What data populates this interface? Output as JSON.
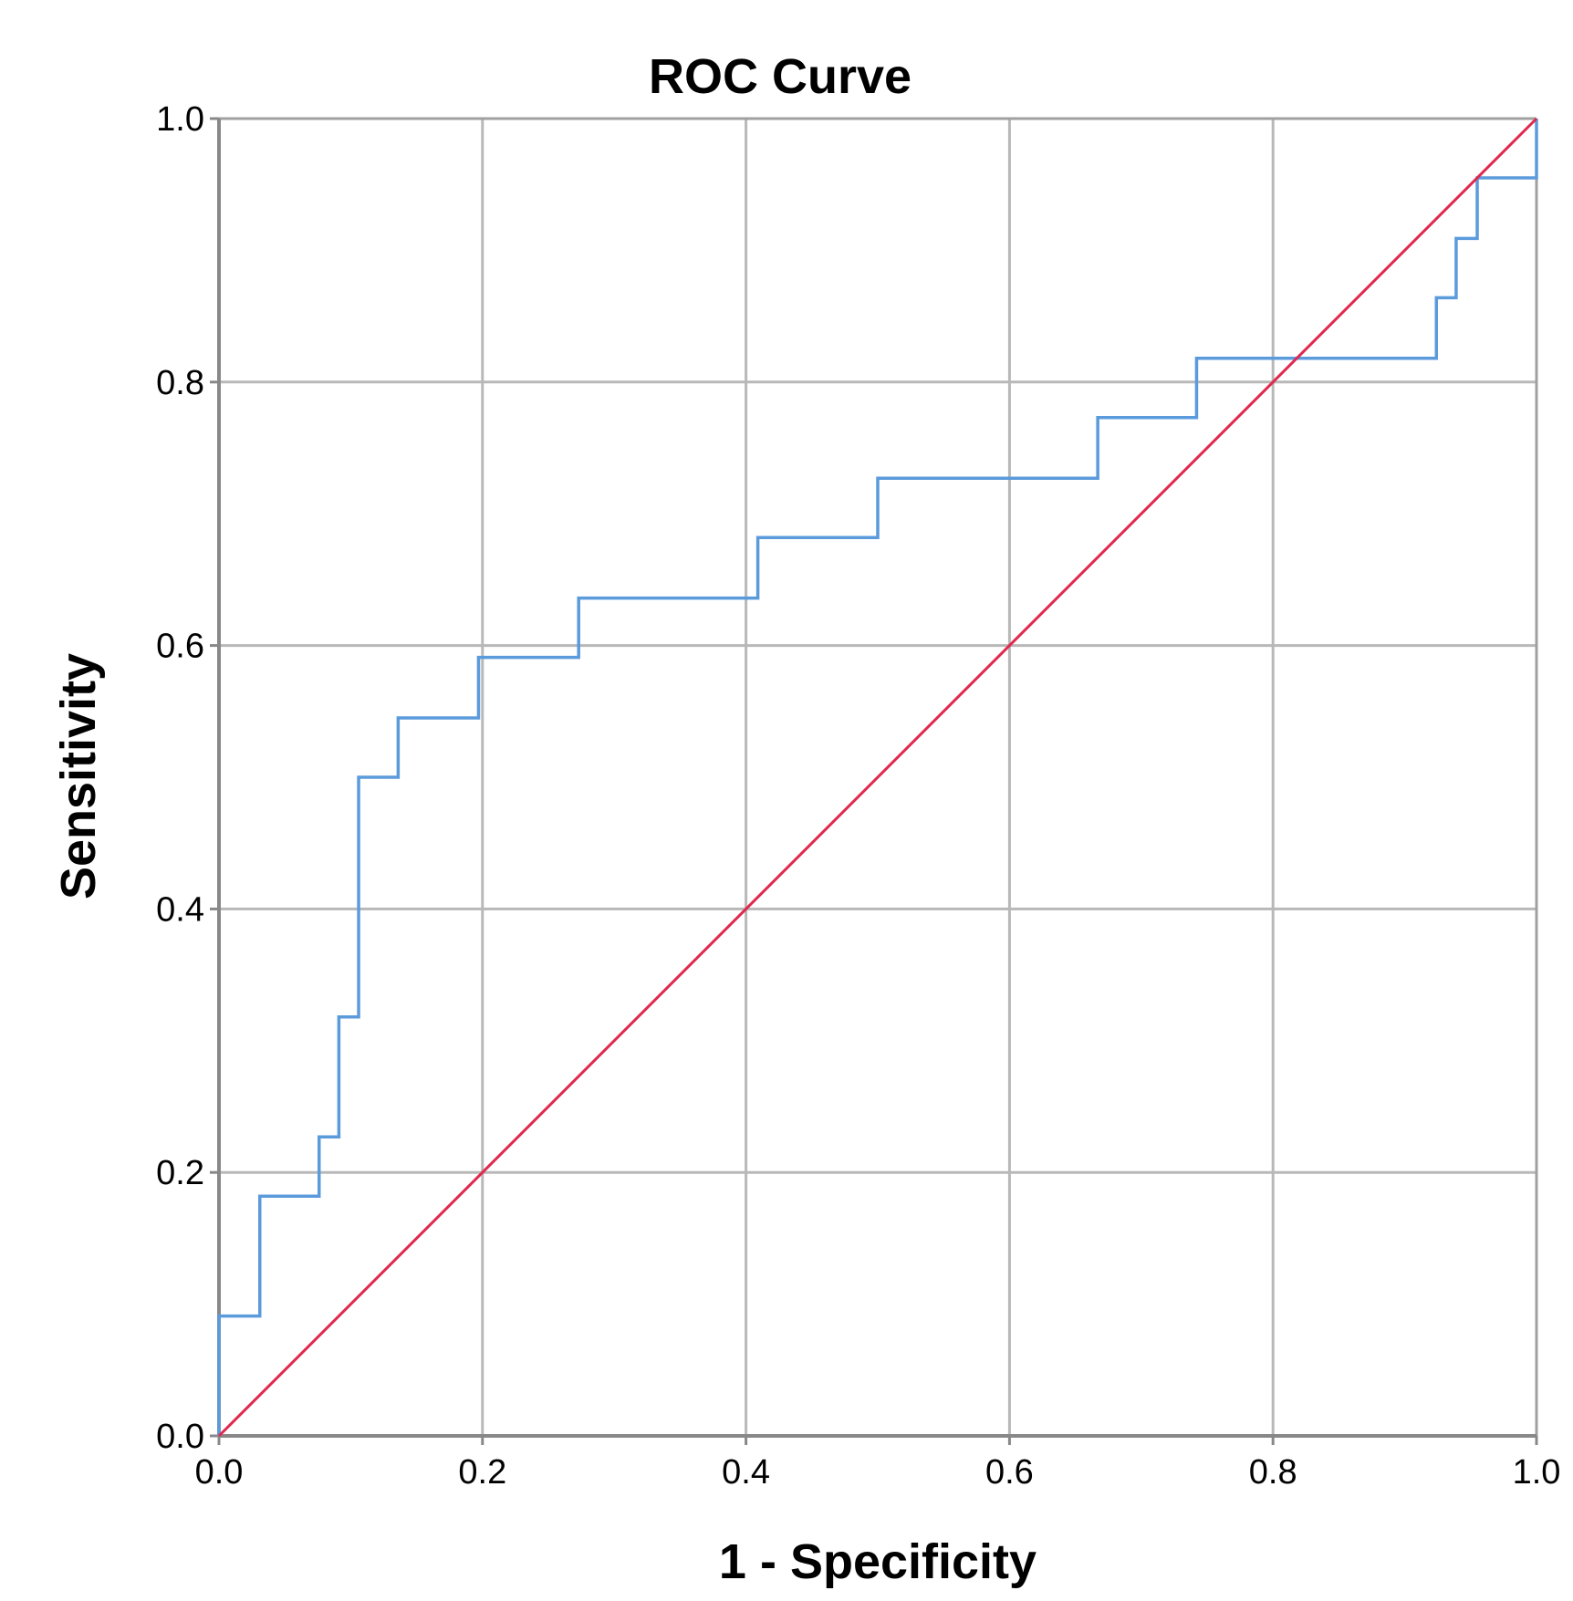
{
  "chart_data": {
    "type": "line",
    "title": "ROC Curve",
    "xlabel": "1 - Specificity",
    "ylabel": "Sensitivity",
    "xlim": [
      0,
      1
    ],
    "ylim": [
      0,
      1
    ],
    "x_ticks": [
      "0.0",
      "0.2",
      "0.4",
      "0.6",
      "0.8",
      "1.0"
    ],
    "y_ticks": [
      "0.0",
      "0.2",
      "0.4",
      "0.6",
      "0.8",
      "1.0"
    ],
    "grid": true,
    "legend": "none",
    "series": [
      {
        "color": "#5b9bdc",
        "step": true,
        "points": [
          [
            0.0,
            0.0
          ],
          [
            0.0,
            0.091
          ],
          [
            0.031,
            0.091
          ],
          [
            0.031,
            0.182
          ],
          [
            0.076,
            0.182
          ],
          [
            0.076,
            0.227
          ],
          [
            0.091,
            0.227
          ],
          [
            0.091,
            0.318
          ],
          [
            0.106,
            0.318
          ],
          [
            0.106,
            0.5
          ],
          [
            0.136,
            0.5
          ],
          [
            0.136,
            0.545
          ],
          [
            0.197,
            0.545
          ],
          [
            0.197,
            0.591
          ],
          [
            0.273,
            0.591
          ],
          [
            0.273,
            0.636
          ],
          [
            0.409,
            0.636
          ],
          [
            0.409,
            0.682
          ],
          [
            0.5,
            0.682
          ],
          [
            0.5,
            0.727
          ],
          [
            0.667,
            0.727
          ],
          [
            0.667,
            0.773
          ],
          [
            0.742,
            0.773
          ],
          [
            0.742,
            0.818
          ],
          [
            0.924,
            0.818
          ],
          [
            0.924,
            0.864
          ],
          [
            0.939,
            0.864
          ],
          [
            0.939,
            0.909
          ],
          [
            0.955,
            0.909
          ],
          [
            0.955,
            0.955
          ],
          [
            1.0,
            0.955
          ],
          [
            1.0,
            1.0
          ]
        ]
      },
      {
        "color": "#e0284e",
        "step": false,
        "points": [
          [
            0.0,
            0.0
          ],
          [
            1.0,
            1.0
          ]
        ]
      }
    ]
  },
  "colors": {
    "grid": "#b8b8b8",
    "axis": "#888888",
    "plot_border": "#a0a0a0"
  }
}
